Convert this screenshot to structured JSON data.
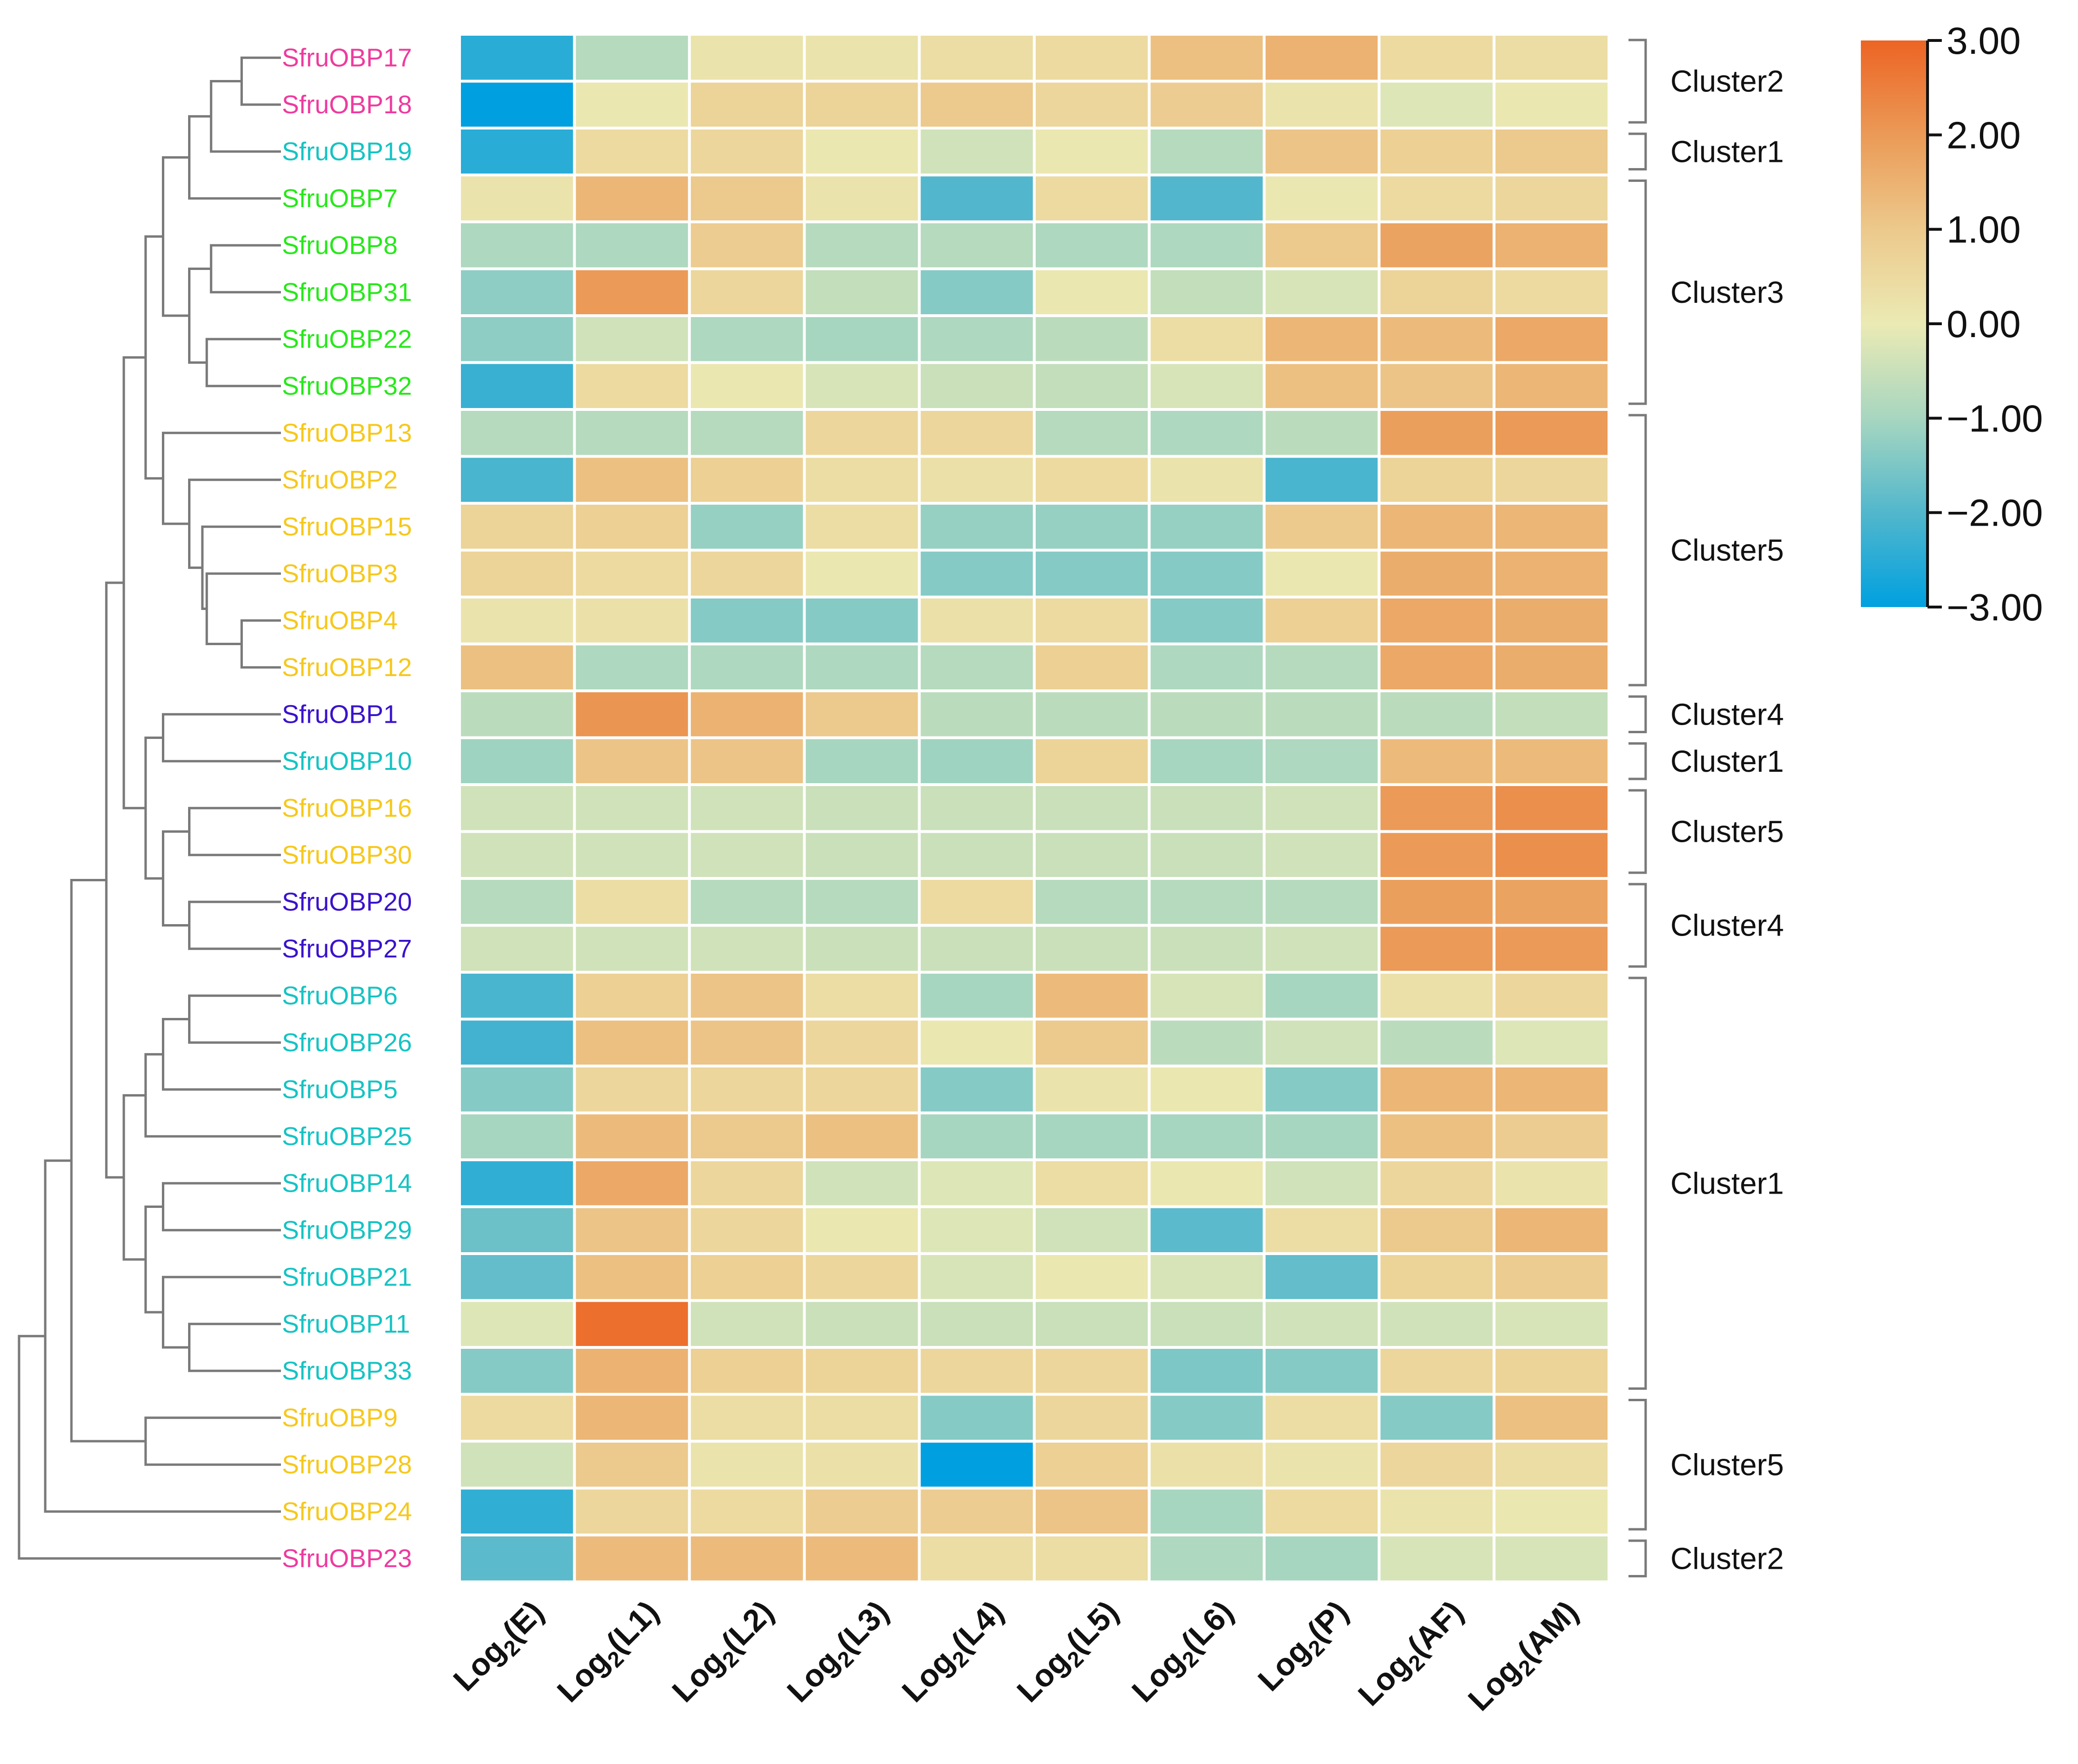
{
  "chart_data": {
    "type": "heatmap",
    "title": "",
    "rows": [
      "SfruOBP17",
      "SfruOBP18",
      "SfruOBP19",
      "SfruOBP7",
      "SfruOBP8",
      "SfruOBP31",
      "SfruOBP22",
      "SfruOBP32",
      "SfruOBP13",
      "SfruOBP2",
      "SfruOBP15",
      "SfruOBP3",
      "SfruOBP4",
      "SfruOBP12",
      "SfruOBP1",
      "SfruOBP10",
      "SfruOBP16",
      "SfruOBP30",
      "SfruOBP20",
      "SfruOBP27",
      "SfruOBP6",
      "SfruOBP26",
      "SfruOBP5",
      "SfruOBP25",
      "SfruOBP14",
      "SfruOBP29",
      "SfruOBP21",
      "SfruOBP11",
      "SfruOBP33",
      "SfruOBP9",
      "SfruOBP28",
      "SfruOBP24",
      "SfruOBP23"
    ],
    "row_groups": [
      "g2",
      "g2",
      "g1",
      "g3",
      "g3",
      "g3",
      "g3",
      "g3",
      "g5",
      "g5",
      "g5",
      "g5",
      "g5",
      "g5",
      "g4",
      "g1",
      "g5",
      "g5",
      "g4",
      "g4",
      "g1",
      "g1",
      "g1",
      "g1",
      "g1",
      "g1",
      "g1",
      "g1",
      "g1",
      "g5",
      "g5",
      "g5",
      "g2"
    ],
    "group_colors": {
      "g1": "#16c3c3",
      "g2": "#ee3b9e",
      "g3": "#27e81a",
      "g4": "#3a12cc",
      "g5": "#f6c81c"
    },
    "columns": [
      {
        "base": "Log",
        "sub": "2",
        "label": "(E)"
      },
      {
        "base": "Log",
        "sub": "2",
        "label": "(L1)"
      },
      {
        "base": "Log",
        "sub": "2",
        "label": "(L2)"
      },
      {
        "base": "Log",
        "sub": "2",
        "label": "(L3)"
      },
      {
        "base": "Log",
        "sub": "2",
        "label": "(L4)"
      },
      {
        "base": "Log",
        "sub": "2",
        "label": "(L5)"
      },
      {
        "base": "Log",
        "sub": "2",
        "label": "(L6)"
      },
      {
        "base": "Log",
        "sub": "2",
        "label": "(P)"
      },
      {
        "base": "Log",
        "sub": "2",
        "label": "(AF)"
      },
      {
        "base": "Log",
        "sub": "2",
        "label": "(AM)"
      }
    ],
    "values": [
      [
        -2.5,
        -0.8,
        0.2,
        0.2,
        0.4,
        0.5,
        1.2,
        1.5,
        0.5,
        0.4
      ],
      [
        -3.0,
        0.1,
        0.7,
        0.7,
        1.0,
        0.6,
        0.9,
        0.2,
        -0.2,
        0.1
      ],
      [
        -2.5,
        0.5,
        0.6,
        0.1,
        -0.4,
        0.1,
        -0.8,
        1.1,
        0.8,
        1.0
      ],
      [
        0.2,
        1.4,
        1.0,
        0.2,
        -2.0,
        0.5,
        -2.0,
        0.1,
        0.5,
        0.6
      ],
      [
        -0.9,
        -0.9,
        0.9,
        -0.8,
        -0.8,
        -0.9,
        -0.9,
        1.0,
        1.8,
        1.5
      ],
      [
        -1.3,
        2.0,
        0.6,
        -0.6,
        -1.4,
        0.1,
        -0.6,
        -0.3,
        0.7,
        0.5
      ],
      [
        -1.3,
        -0.4,
        -0.9,
        -1.0,
        -0.9,
        -0.7,
        0.4,
        1.4,
        1.3,
        1.7
      ],
      [
        -2.3,
        0.5,
        0.1,
        -0.3,
        -0.5,
        -0.6,
        -0.3,
        1.2,
        1.1,
        1.4
      ],
      [
        -0.8,
        -0.8,
        -0.8,
        0.6,
        0.6,
        -0.8,
        -0.9,
        -0.7,
        1.9,
        2.0
      ],
      [
        -2.1,
        1.2,
        0.8,
        0.4,
        0.3,
        0.5,
        0.2,
        -2.1,
        0.7,
        0.6
      ],
      [
        0.7,
        0.8,
        -1.2,
        0.4,
        -1.2,
        -1.2,
        -1.2,
        1.0,
        1.4,
        1.4
      ],
      [
        0.7,
        0.5,
        0.6,
        0.1,
        -1.4,
        -1.4,
        -1.4,
        0.1,
        1.6,
        1.5
      ],
      [
        0.2,
        0.3,
        -1.4,
        -1.4,
        0.3,
        0.5,
        -1.4,
        0.8,
        1.7,
        1.6
      ],
      [
        1.2,
        -0.9,
        -0.9,
        -0.9,
        -0.8,
        0.8,
        -0.9,
        -0.8,
        1.7,
        1.6
      ],
      [
        -0.7,
        2.1,
        1.5,
        1.0,
        -0.7,
        -0.7,
        -0.7,
        -0.7,
        -0.7,
        -0.6
      ],
      [
        -1.1,
        1.1,
        1.1,
        -1.0,
        -1.1,
        0.7,
        -1.0,
        -0.9,
        1.3,
        1.3
      ],
      [
        -0.4,
        -0.4,
        -0.4,
        -0.5,
        -0.5,
        -0.5,
        -0.5,
        -0.4,
        2.0,
        2.2
      ],
      [
        -0.4,
        -0.4,
        -0.4,
        -0.5,
        -0.5,
        -0.5,
        -0.5,
        -0.4,
        2.0,
        2.2
      ],
      [
        -0.8,
        0.4,
        -0.8,
        -0.8,
        0.5,
        -0.8,
        -0.8,
        -0.8,
        1.9,
        1.8
      ],
      [
        -0.4,
        -0.4,
        -0.4,
        -0.5,
        -0.5,
        -0.5,
        -0.5,
        -0.4,
        2.0,
        2.0
      ],
      [
        -2.1,
        0.8,
        1.1,
        0.4,
        -1.0,
        1.3,
        -0.3,
        -1.0,
        0.3,
        0.6
      ],
      [
        -2.2,
        1.2,
        1.1,
        0.6,
        0.1,
        1.0,
        -0.7,
        -0.4,
        -0.7,
        -0.2
      ],
      [
        -1.4,
        0.6,
        0.6,
        0.6,
        -1.4,
        0.2,
        0.1,
        -1.4,
        1.4,
        1.4
      ],
      [
        -1.0,
        1.3,
        1.0,
        1.2,
        -1.0,
        -1.0,
        -1.0,
        -1.0,
        1.2,
        0.9
      ],
      [
        -2.4,
        1.7,
        0.6,
        -0.4,
        -0.2,
        0.4,
        0.1,
        -0.4,
        0.6,
        0.2
      ],
      [
        -1.7,
        1.1,
        0.6,
        0.1,
        -0.2,
        -0.4,
        -1.9,
        0.4,
        1.0,
        1.4
      ],
      [
        -1.8,
        1.2,
        0.8,
        0.6,
        -0.3,
        0.1,
        -0.3,
        -1.8,
        0.7,
        0.9
      ],
      [
        -0.2,
        2.8,
        -0.4,
        -0.5,
        -0.5,
        -0.5,
        -0.5,
        -0.4,
        -0.4,
        -0.3
      ],
      [
        -1.4,
        1.5,
        0.8,
        0.7,
        0.6,
        0.6,
        -1.5,
        -1.4,
        0.6,
        0.7
      ],
      [
        0.5,
        1.4,
        0.4,
        0.4,
        -1.4,
        0.6,
        -1.4,
        0.4,
        -1.4,
        1.2
      ],
      [
        -0.4,
        1.0,
        0.2,
        0.3,
        -3.0,
        0.8,
        0.3,
        0.2,
        0.6,
        0.4
      ],
      [
        -2.4,
        0.6,
        0.5,
        0.9,
        0.9,
        1.1,
        -1.0,
        0.5,
        0.2,
        0.1
      ],
      [
        -1.9,
        1.3,
        1.3,
        1.3,
        0.4,
        0.4,
        -0.9,
        -1.0,
        -0.3,
        -0.3
      ]
    ],
    "clusters": [
      {
        "label": "Cluster2",
        "from": 0,
        "to": 1
      },
      {
        "label": "Cluster1",
        "from": 2,
        "to": 2
      },
      {
        "label": "Cluster3",
        "from": 3,
        "to": 7
      },
      {
        "label": "Cluster5",
        "from": 8,
        "to": 13
      },
      {
        "label": "Cluster4",
        "from": 14,
        "to": 14
      },
      {
        "label": "Cluster1",
        "from": 15,
        "to": 15
      },
      {
        "label": "Cluster5",
        "from": 16,
        "to": 17
      },
      {
        "label": "Cluster4",
        "from": 18,
        "to": 19
      },
      {
        "label": "Cluster1",
        "from": 20,
        "to": 28
      },
      {
        "label": "Cluster5",
        "from": 29,
        "to": 31
      },
      {
        "label": "Cluster2",
        "from": 32,
        "to": 32
      }
    ],
    "dendrogram": {
      "merges": [
        {
          "id": "a1",
          "left": "SfruOBP17",
          "right": "SfruOBP18",
          "height": 0.045
        },
        {
          "id": "a2",
          "left": "a1",
          "right": "SfruOBP19",
          "height": 0.08
        },
        {
          "id": "a3",
          "left": "a2",
          "right": "SfruOBP7",
          "height": 0.105
        },
        {
          "id": "a4",
          "left": "SfruOBP8",
          "right": "SfruOBP31",
          "height": 0.08
        },
        {
          "id": "a5",
          "left": "SfruOBP22",
          "right": "SfruOBP32",
          "height": 0.085
        },
        {
          "id": "a6",
          "left": "a4",
          "right": "a5",
          "height": 0.105
        },
        {
          "id": "a7",
          "left": "a3",
          "right": "a6",
          "height": 0.135
        },
        {
          "id": "a8",
          "left": "SfruOBP4",
          "right": "SfruOBP12",
          "height": 0.045
        },
        {
          "id": "a9",
          "left": "SfruOBP3",
          "right": "a8",
          "height": 0.085
        },
        {
          "id": "a10",
          "left": "SfruOBP15",
          "right": "a9",
          "height": 0.09
        },
        {
          "id": "a11",
          "left": "SfruOBP2",
          "right": "a10",
          "height": 0.105
        },
        {
          "id": "a12",
          "left": "SfruOBP13",
          "right": "a11",
          "height": 0.135
        },
        {
          "id": "a13",
          "left": "a7",
          "right": "a12",
          "height": 0.155
        },
        {
          "id": "a14",
          "left": "SfruOBP1",
          "right": "SfruOBP10",
          "height": 0.135
        },
        {
          "id": "a15",
          "left": "SfruOBP16",
          "right": "SfruOBP30",
          "height": 0.105
        },
        {
          "id": "a16",
          "left": "SfruOBP20",
          "right": "SfruOBP27",
          "height": 0.105
        },
        {
          "id": "a17",
          "left": "a15",
          "right": "a16",
          "height": 0.135
        },
        {
          "id": "a18",
          "left": "a14",
          "right": "a17",
          "height": 0.155
        },
        {
          "id": "a19",
          "left": "a13",
          "right": "a18",
          "height": 0.18
        },
        {
          "id": "a20",
          "left": "SfruOBP6",
          "right": "SfruOBP26",
          "height": 0.105
        },
        {
          "id": "a21",
          "left": "a20",
          "right": "SfruOBP5",
          "height": 0.135
        },
        {
          "id": "a22",
          "left": "a21",
          "right": "SfruOBP25",
          "height": 0.155
        },
        {
          "id": "a23",
          "left": "SfruOBP14",
          "right": "SfruOBP29",
          "height": 0.135
        },
        {
          "id": "a24",
          "left": "SfruOBP11",
          "right": "SfruOBP33",
          "height": 0.105
        },
        {
          "id": "a25",
          "left": "SfruOBP21",
          "right": "a24",
          "height": 0.135
        },
        {
          "id": "a26",
          "left": "a23",
          "right": "a25",
          "height": 0.155
        },
        {
          "id": "a27",
          "left": "a22",
          "right": "a26",
          "height": 0.18
        },
        {
          "id": "a28",
          "left": "a19",
          "right": "a27",
          "height": 0.2
        },
        {
          "id": "a29",
          "left": "SfruOBP9",
          "right": "SfruOBP28",
          "height": 0.155
        },
        {
          "id": "a30",
          "left": "a28",
          "right": "a29",
          "height": 0.24
        },
        {
          "id": "a31",
          "left": "a30",
          "right": "SfruOBP24",
          "height": 0.27
        },
        {
          "id": "a32",
          "left": "a31",
          "right": "SfruOBP23",
          "height": 0.3
        }
      ],
      "max_height": 0.3
    },
    "colorbar": {
      "min": -3,
      "max": 3,
      "ticks": [
        "3.00",
        "2.00",
        "1.00",
        "0.00",
        "−1.00",
        "−2.00",
        "−3.00"
      ],
      "stops": [
        {
          "v": -3.0,
          "c": "#00a0e0"
        },
        {
          "v": -2.0,
          "c": "#52b7cc"
        },
        {
          "v": -1.0,
          "c": "#a7d6c0"
        },
        {
          "v": 0.0,
          "c": "#ebeab4"
        },
        {
          "v": 1.0,
          "c": "#ecc98c"
        },
        {
          "v": 2.0,
          "c": "#eb9a57"
        },
        {
          "v": 3.0,
          "c": "#ec6424"
        }
      ]
    }
  }
}
